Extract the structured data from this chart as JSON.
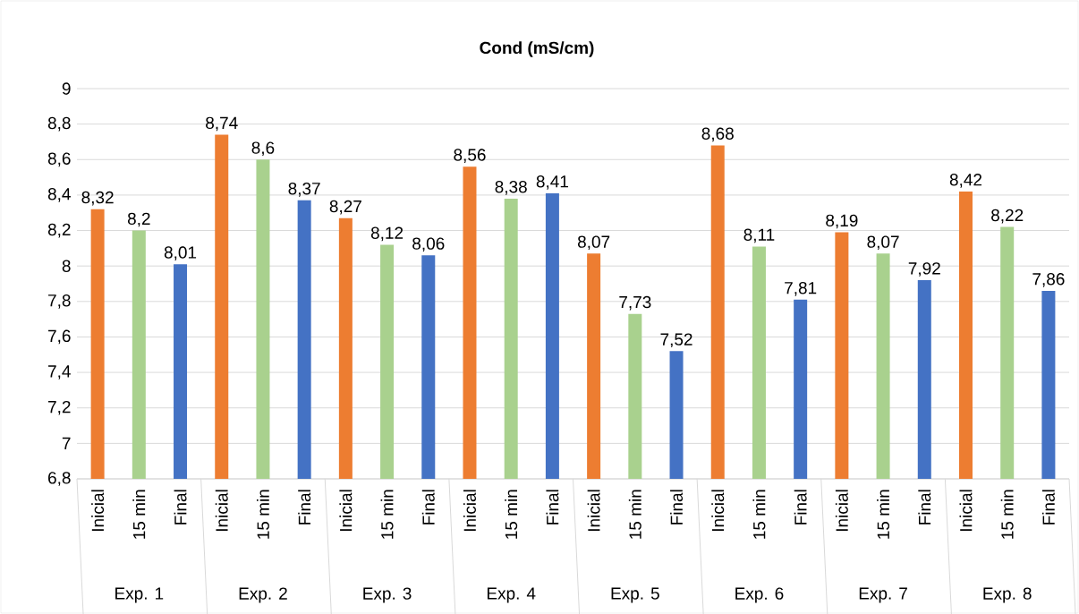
{
  "chart_data": {
    "type": "bar",
    "title": "Cond (mS/cm)",
    "categories": [
      "Exp. 1",
      "Exp. 2",
      "Exp. 3",
      "Exp. 4",
      "Exp. 5",
      "Exp. 6",
      "Exp. 7",
      "Exp. 8"
    ],
    "series": [
      {
        "name": "Inicial",
        "color": "#ed7d31",
        "values": [
          8.32,
          8.74,
          8.27,
          8.56,
          8.07,
          8.68,
          8.19,
          8.42
        ],
        "value_labels": [
          "8,32",
          "8,74",
          "8,27",
          "8,56",
          "8,07",
          "8,68",
          "8,19",
          "8,42"
        ]
      },
      {
        "name": "15 min",
        "color": "#a9d18e",
        "values": [
          8.2,
          8.6,
          8.12,
          8.38,
          7.73,
          8.11,
          8.07,
          8.22
        ],
        "value_labels": [
          "8,2",
          "8,6",
          "8,12",
          "8,38",
          "7,73",
          "8,11",
          "8,07",
          "8,22"
        ]
      },
      {
        "name": "Final",
        "color": "#4472c4",
        "values": [
          8.01,
          8.37,
          8.06,
          8.41,
          7.52,
          7.81,
          7.92,
          7.86
        ],
        "value_labels": [
          "8,01",
          "8,37",
          "8,06",
          "8,41",
          "7,52",
          "7,81",
          "7,92",
          "7,86"
        ]
      }
    ],
    "ylim": [
      6.8,
      9
    ],
    "yticks": [
      {
        "value": 6.8,
        "label": "6,8"
      },
      7,
      {
        "value": 7.2,
        "label": "7,2"
      },
      {
        "value": 7.4,
        "label": "7,4"
      },
      {
        "value": 7.6,
        "label": "7,6"
      },
      {
        "value": 7.8,
        "label": "7,8"
      },
      8,
      {
        "value": 8.2,
        "label": "8,2"
      },
      {
        "value": 8.4,
        "label": "8,4"
      },
      {
        "value": 8.6,
        "label": "8,6"
      },
      {
        "value": 8.8,
        "label": "8,8"
      },
      9
    ],
    "grid": "y",
    "legend": false
  }
}
